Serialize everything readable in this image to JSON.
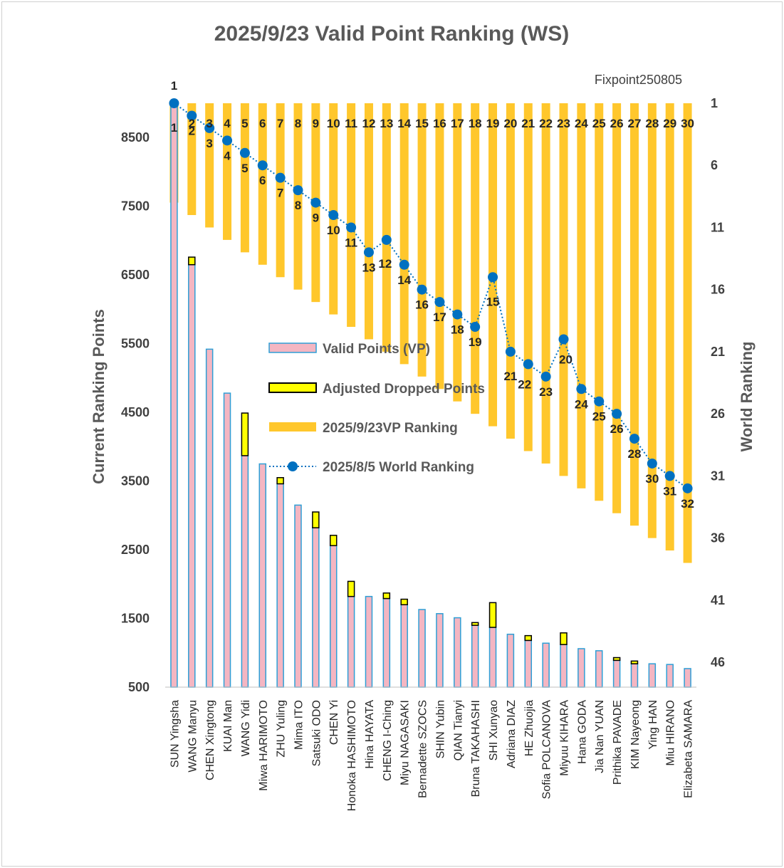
{
  "chart_data": {
    "type": "bar",
    "title": "2025/9/23  Valid Point Ranking (WS)",
    "note": "Fixpoint250805",
    "ylabel_left": "Current Ranking Points",
    "ylabel_right": "World Ranking",
    "ylim_left": [
      500,
      9000
    ],
    "yticks_left": [
      500,
      1500,
      2500,
      3500,
      4500,
      5500,
      6500,
      7500,
      8500
    ],
    "ylim_right": [
      1,
      48
    ],
    "yticks_right": [
      1,
      6,
      11,
      16,
      21,
      26,
      31,
      36,
      41,
      46
    ],
    "categories": [
      "SUN Yingsha",
      "WANG Manyu",
      "CHEN Xingtong",
      "KUAI Man",
      "WANG Yidi",
      "Miwa HARIMOTO",
      "ZHU Yuling",
      "Mima ITO",
      "Satsuki ODO",
      "CHEN Yi",
      "Honoka HASHIMOTO",
      "Hina HAYATA",
      "CHENG I-Ching",
      "Miyu NAGASAKI",
      "Bernadette SZOCS",
      "SHIN Yubin",
      "QIAN Tianyi",
      "Bruna TAKAHASHI",
      "SHI Xunyao",
      "Adriana DIAZ",
      "HE Zhuojia",
      "Sofia POLCANOVA",
      "Miyuu KIHARA",
      "Hana GODA",
      "Jia Nan YUAN",
      "Prithika PAVADE",
      "KIM Nayeong",
      "Ying HAN",
      "Miu HIRANO",
      "Elizabeta SAMARA"
    ],
    "legend_position": "center-left",
    "series": [
      {
        "name": "Valid Points (VP)",
        "type": "bar",
        "axis": "left",
        "color": "#F4B6C2",
        "border": "#2E9FD6",
        "values": [
          9000,
          6650,
          5420,
          4780,
          3870,
          3750,
          3460,
          3150,
          2820,
          2560,
          1820,
          1820,
          1790,
          1700,
          1630,
          1570,
          1510,
          1400,
          1370,
          1270,
          1180,
          1140,
          1120,
          1060,
          1030,
          890,
          840,
          840,
          830,
          770
        ]
      },
      {
        "name": "Adjusted Dropped Points",
        "type": "bar-stacked",
        "axis": "left",
        "color": "#FFFF00",
        "border": "#000000",
        "values": [
          0,
          110,
          0,
          0,
          620,
          0,
          90,
          0,
          230,
          150,
          220,
          0,
          80,
          80,
          0,
          0,
          0,
          40,
          360,
          0,
          70,
          0,
          170,
          0,
          0,
          40,
          40,
          0,
          0,
          0
        ]
      },
      {
        "name": "2025/9/23VP Ranking",
        "type": "bar-inverted",
        "axis": "right",
        "color": "#FFC72C",
        "values": [
          1,
          2,
          3,
          4,
          5,
          6,
          7,
          8,
          9,
          10,
          11,
          12,
          13,
          14,
          15,
          16,
          17,
          18,
          19,
          20,
          21,
          22,
          23,
          24,
          25,
          26,
          27,
          28,
          29,
          30
        ]
      },
      {
        "name": "2025/8/5 World Ranking",
        "type": "line",
        "axis": "right",
        "color": "#0070C0",
        "values": [
          1,
          2,
          3,
          4,
          5,
          6,
          7,
          8,
          9,
          10,
          11,
          13,
          12,
          14,
          16,
          17,
          18,
          19,
          15,
          21,
          22,
          23,
          20,
          24,
          25,
          26,
          28,
          30,
          31,
          32
        ]
      }
    ],
    "vp_rank_labels": [
      "1",
      "2",
      "3",
      "4",
      "5",
      "6",
      "7",
      "8",
      "9",
      "10",
      "11",
      "12",
      "13",
      "14",
      "15",
      "16",
      "17",
      "18",
      "19",
      "20",
      "21",
      "22",
      "23",
      "24",
      "25",
      "26",
      "27",
      "28",
      "29",
      "30"
    ],
    "world_rank_labels": [
      "1",
      "2",
      "3",
      "4",
      "5",
      "6",
      "7",
      "8",
      "9",
      "10",
      "11",
      "13",
      "12",
      "14",
      "16",
      "17",
      "18",
      "19",
      "15",
      "21",
      "22",
      "23",
      "20",
      "24",
      "25",
      "26",
      "28",
      "30",
      "31",
      "32"
    ]
  }
}
